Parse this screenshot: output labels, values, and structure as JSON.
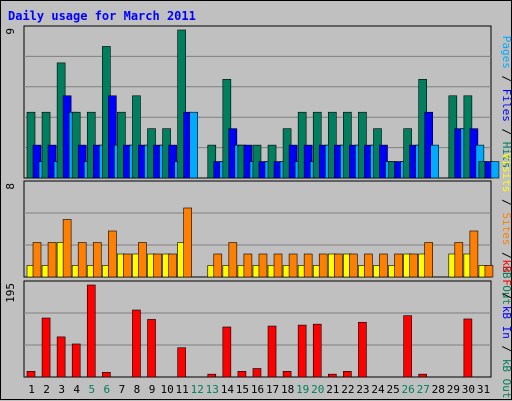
{
  "chart_data": {
    "type": "bar",
    "title": "Daily usage for March 2011",
    "categories": [
      "1",
      "2",
      "3",
      "4",
      "5",
      "6",
      "7",
      "8",
      "9",
      "10",
      "11",
      "12",
      "13",
      "14",
      "15",
      "16",
      "17",
      "18",
      "19",
      "20",
      "21",
      "22",
      "23",
      "24",
      "25",
      "26",
      "27",
      "28",
      "29",
      "30",
      "31"
    ],
    "weekend_days": [
      5,
      6,
      12,
      13,
      19,
      20,
      26,
      27
    ],
    "panels": [
      {
        "name": "hits-files-pages",
        "ymax_label": "9",
        "ymax": 9,
        "right_labels": [
          {
            "text": "Pages",
            "color": "#00aaff"
          },
          {
            "text": " / ",
            "color": "#000000"
          },
          {
            "text": "Files",
            "color": "#0000ff"
          },
          {
            "text": " / ",
            "color": "#000000"
          },
          {
            "text": "Hits",
            "color": "#007f5f"
          }
        ],
        "series": [
          {
            "name": "Hits",
            "color": "#007f5f",
            "values": [
              4,
              4,
              7,
              4,
              4,
              8,
              4,
              5,
              3,
              3,
              9,
              0,
              2,
              6,
              2,
              2,
              2,
              3,
              4,
              4,
              4,
              4,
              4,
              3,
              1,
              3,
              6,
              0,
              5,
              5,
              1
            ]
          },
          {
            "name": "Files",
            "color": "#0000ff",
            "values": [
              2,
              2,
              5,
              2,
              2,
              5,
              2,
              2,
              2,
              2,
              4,
              0,
              1,
              3,
              2,
              1,
              1,
              2,
              2,
              2,
              2,
              2,
              2,
              2,
              1,
              2,
              4,
              0,
              3,
              3,
              1
            ]
          },
          {
            "name": "Pages",
            "color": "#00aaff",
            "values": [
              1,
              1,
              4,
              1,
              2,
              2,
              2,
              2,
              2,
              1,
              4,
              0,
              1,
              2,
              1,
              1,
              1,
              1,
              1,
              2,
              2,
              2,
              2,
              1,
              1,
              2,
              2,
              0,
              3,
              2,
              1
            ]
          }
        ]
      },
      {
        "name": "visits-sites-kbout",
        "ymax_label": "8",
        "ymax": 8,
        "right_labels": [
          {
            "text": "Visits",
            "color": "#ffff00"
          },
          {
            "text": " / ",
            "color": "#000000"
          },
          {
            "text": "Sites",
            "color": "#ff8000"
          },
          {
            "text": " / ",
            "color": "#000000"
          },
          {
            "text": "kB Out",
            "color": "#007f5f"
          }
        ],
        "series": [
          {
            "name": "Visits",
            "color": "#ffff00",
            "values": [
              1,
              1,
              3,
              1,
              1,
              1,
              2,
              2,
              2,
              2,
              3,
              0,
              1,
              1,
              1,
              1,
              1,
              1,
              1,
              1,
              2,
              2,
              1,
              1,
              1,
              2,
              2,
              0,
              2,
              2,
              1
            ]
          },
          {
            "name": "Sites",
            "color": "#ff8000",
            "values": [
              3,
              3,
              5,
              3,
              3,
              4,
              2,
              3,
              2,
              2,
              6,
              0,
              2,
              3,
              2,
              2,
              2,
              2,
              2,
              2,
              2,
              2,
              2,
              2,
              2,
              2,
              3,
              0,
              3,
              4,
              1
            ]
          }
        ]
      },
      {
        "name": "kbin-kbf",
        "ymax_label": "195",
        "ymax": 195,
        "right_labels": [
          {
            "text": "kB F",
            "color": "#ff0000"
          },
          {
            "text": " / ",
            "color": "#000000"
          },
          {
            "text": "kB In",
            "color": "#0000ff"
          },
          {
            "text": " / ",
            "color": "#000000"
          },
          {
            "text": "kB Out",
            "color": "#007f5f"
          }
        ],
        "series": [
          {
            "name": "kB F",
            "color": "#ff0000",
            "values": [
              12,
              125,
              85,
              70,
              195,
              10,
              0,
              142,
              122,
              0,
              62,
              0,
              6,
              106,
              12,
              18,
              108,
              12,
              110,
              112,
              6,
              12,
              116,
              0,
              0,
              130,
              6,
              0,
              0,
              123,
              0
            ]
          }
        ]
      }
    ]
  }
}
